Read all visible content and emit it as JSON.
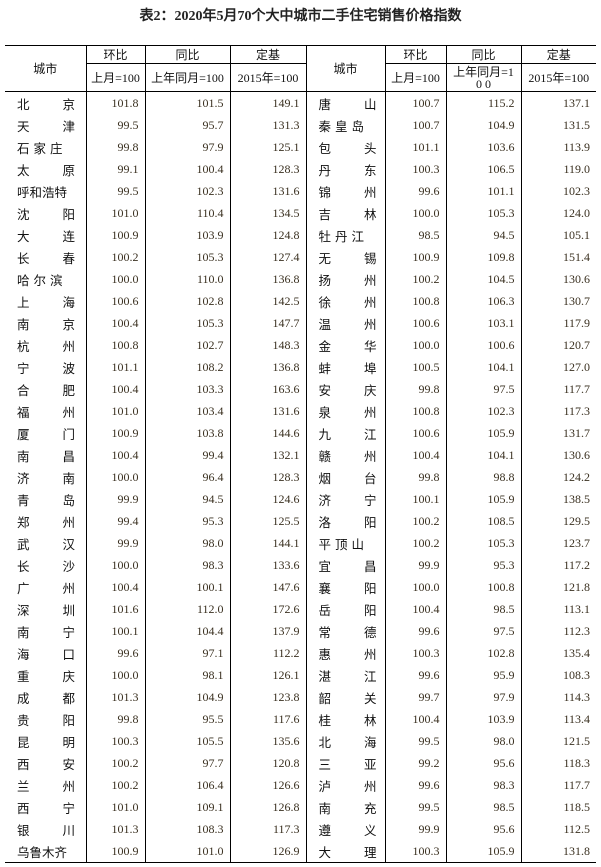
{
  "title": "表2：2020年5月70个大中城市二手住宅销售价格指数",
  "header": {
    "city": "城市",
    "mom": "环比",
    "yoy": "同比",
    "base": "定基",
    "mom_sub": "上月=100",
    "yoy_sub_left": "上年同月=100",
    "yoy_sub_right": "上年同月=10 0",
    "base_sub": "2015年=100"
  },
  "rows": [
    {
      "left": [
        "北京",
        "101.8",
        "101.5",
        "149.1"
      ],
      "right": [
        "唐山",
        "100.7",
        "115.2",
        "137.1"
      ]
    },
    {
      "left": [
        "天津",
        "99.5",
        "95.7",
        "131.3"
      ],
      "right": [
        "秦皇岛",
        "100.7",
        "104.9",
        "131.5"
      ]
    },
    {
      "left": [
        "石家庄",
        "99.8",
        "97.9",
        "125.1"
      ],
      "right": [
        "包头",
        "101.1",
        "103.6",
        "113.9"
      ]
    },
    {
      "left": [
        "太原",
        "99.1",
        "100.4",
        "128.3"
      ],
      "right": [
        "丹东",
        "100.3",
        "106.5",
        "119.0"
      ]
    },
    {
      "left": [
        "呼和浩特",
        "99.5",
        "102.3",
        "131.6"
      ],
      "right": [
        "锦州",
        "99.6",
        "101.1",
        "102.3"
      ]
    },
    {
      "left": [
        "沈阳",
        "101.0",
        "110.4",
        "134.5"
      ],
      "right": [
        "吉林",
        "100.0",
        "105.3",
        "124.0"
      ]
    },
    {
      "left": [
        "大连",
        "100.9",
        "103.9",
        "124.8"
      ],
      "right": [
        "牡丹江",
        "98.5",
        "94.5",
        "105.1"
      ]
    },
    {
      "left": [
        "长春",
        "100.2",
        "105.3",
        "127.4"
      ],
      "right": [
        "无锡",
        "100.9",
        "109.8",
        "151.4"
      ]
    },
    {
      "left": [
        "哈尔滨",
        "100.0",
        "110.0",
        "136.8"
      ],
      "right": [
        "扬州",
        "100.2",
        "104.5",
        "130.6"
      ]
    },
    {
      "left": [
        "上海",
        "100.6",
        "102.8",
        "142.5"
      ],
      "right": [
        "徐州",
        "100.8",
        "106.3",
        "130.7"
      ]
    },
    {
      "left": [
        "南京",
        "100.4",
        "105.3",
        "147.7"
      ],
      "right": [
        "温州",
        "100.6",
        "103.1",
        "117.9"
      ]
    },
    {
      "left": [
        "杭州",
        "100.8",
        "102.7",
        "148.3"
      ],
      "right": [
        "金华",
        "100.0",
        "100.6",
        "120.7"
      ]
    },
    {
      "left": [
        "宁波",
        "101.1",
        "108.2",
        "136.8"
      ],
      "right": [
        "蚌埠",
        "100.5",
        "104.1",
        "127.0"
      ]
    },
    {
      "left": [
        "合肥",
        "100.4",
        "103.3",
        "163.6"
      ],
      "right": [
        "安庆",
        "99.8",
        "97.5",
        "117.7"
      ]
    },
    {
      "left": [
        "福州",
        "101.0",
        "103.4",
        "131.6"
      ],
      "right": [
        "泉州",
        "100.8",
        "102.3",
        "117.3"
      ]
    },
    {
      "left": [
        "厦门",
        "100.9",
        "103.8",
        "144.6"
      ],
      "right": [
        "九江",
        "100.6",
        "105.9",
        "131.7"
      ]
    },
    {
      "left": [
        "南昌",
        "100.4",
        "99.4",
        "132.1"
      ],
      "right": [
        "赣州",
        "100.4",
        "104.1",
        "130.6"
      ]
    },
    {
      "left": [
        "济南",
        "100.0",
        "96.4",
        "128.3"
      ],
      "right": [
        "烟台",
        "99.8",
        "98.8",
        "124.2"
      ]
    },
    {
      "left": [
        "青岛",
        "99.9",
        "94.5",
        "124.6"
      ],
      "right": [
        "济宁",
        "100.1",
        "105.9",
        "138.5"
      ]
    },
    {
      "left": [
        "郑州",
        "99.4",
        "95.3",
        "125.5"
      ],
      "right": [
        "洛阳",
        "100.2",
        "108.5",
        "129.5"
      ]
    },
    {
      "left": [
        "武汉",
        "99.9",
        "98.0",
        "144.1"
      ],
      "right": [
        "平顶山",
        "100.2",
        "105.3",
        "123.7"
      ]
    },
    {
      "left": [
        "长沙",
        "100.0",
        "98.3",
        "133.6"
      ],
      "right": [
        "宜昌",
        "99.9",
        "95.3",
        "117.2"
      ]
    },
    {
      "left": [
        "广州",
        "100.4",
        "100.1",
        "147.6"
      ],
      "right": [
        "襄阳",
        "100.0",
        "100.8",
        "121.8"
      ]
    },
    {
      "left": [
        "深圳",
        "101.6",
        "112.0",
        "172.6"
      ],
      "right": [
        "岳阳",
        "100.4",
        "98.5",
        "113.1"
      ]
    },
    {
      "left": [
        "南宁",
        "100.1",
        "104.4",
        "137.9"
      ],
      "right": [
        "常德",
        "99.6",
        "97.5",
        "112.3"
      ]
    },
    {
      "left": [
        "海口",
        "99.6",
        "97.1",
        "112.2"
      ],
      "right": [
        "惠州",
        "100.3",
        "102.8",
        "135.4"
      ]
    },
    {
      "left": [
        "重庆",
        "100.0",
        "98.1",
        "126.1"
      ],
      "right": [
        "湛江",
        "99.6",
        "95.9",
        "108.3"
      ]
    },
    {
      "left": [
        "成都",
        "101.3",
        "104.9",
        "123.8"
      ],
      "right": [
        "韶关",
        "99.7",
        "97.9",
        "114.3"
      ]
    },
    {
      "left": [
        "贵阳",
        "99.8",
        "95.5",
        "117.6"
      ],
      "right": [
        "桂林",
        "100.4",
        "103.9",
        "113.4"
      ]
    },
    {
      "left": [
        "昆明",
        "100.3",
        "105.5",
        "135.6"
      ],
      "right": [
        "北海",
        "99.5",
        "98.0",
        "121.5"
      ]
    },
    {
      "left": [
        "西安",
        "100.2",
        "97.7",
        "120.8"
      ],
      "right": [
        "三亚",
        "99.2",
        "95.6",
        "118.3"
      ]
    },
    {
      "left": [
        "兰州",
        "100.2",
        "106.4",
        "126.6"
      ],
      "right": [
        "泸州",
        "99.6",
        "98.3",
        "117.7"
      ]
    },
    {
      "left": [
        "西宁",
        "101.0",
        "109.1",
        "126.8"
      ],
      "right": [
        "南充",
        "99.5",
        "98.5",
        "118.5"
      ]
    },
    {
      "left": [
        "银川",
        "101.3",
        "108.3",
        "117.3"
      ],
      "right": [
        "遵义",
        "99.9",
        "95.6",
        "112.5"
      ]
    },
    {
      "left": [
        "乌鲁木齐",
        "100.9",
        "101.0",
        "126.9"
      ],
      "right": [
        "大理",
        "100.3",
        "105.9",
        "131.8"
      ]
    }
  ]
}
